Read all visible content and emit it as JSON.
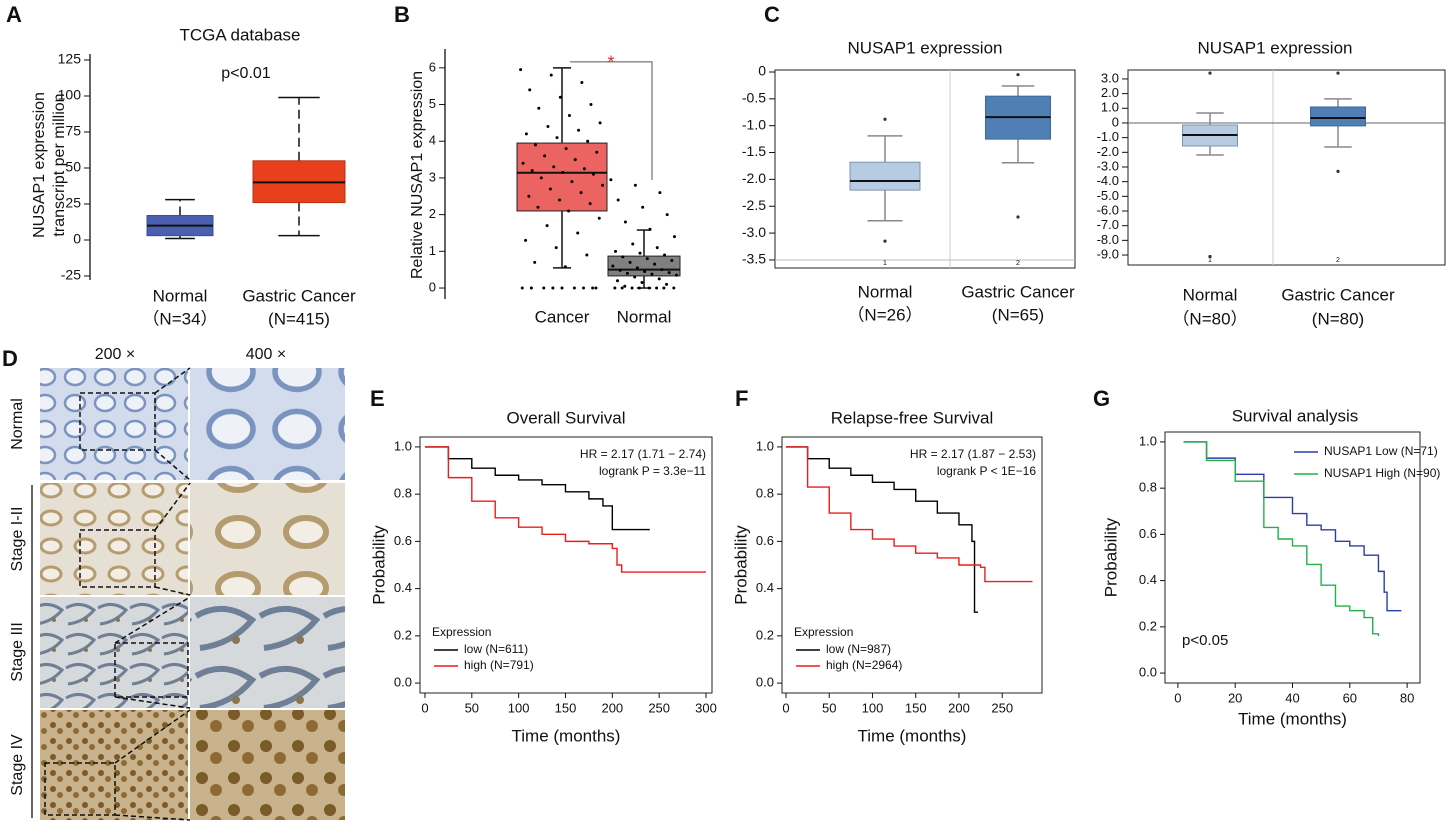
{
  "panel_labels": [
    "A",
    "B",
    "C",
    "D",
    "E",
    "F",
    "G"
  ],
  "histology": {
    "magnifications": [
      "200 ×",
      "400 ×"
    ],
    "rows": [
      "Normal",
      "Stage I-II",
      "Stage III",
      "Stage IV"
    ]
  },
  "chart_data": [
    {
      "type": "box",
      "title": "TCGA database",
      "annotation": "p<0.01",
      "ylabel": [
        "NUSAP1 expression",
        "transcript per million"
      ],
      "categories": [
        "Normal",
        "Gastric Cancer"
      ],
      "category_counts": [
        "（N=34）",
        "(N=415)"
      ],
      "colors": [
        "#4a5fb0",
        "#e8401c"
      ],
      "ylim": [
        -25,
        125
      ],
      "yticks": [
        -25,
        0,
        25,
        50,
        75,
        100,
        125
      ],
      "boxes": [
        {
          "low": 1,
          "q1": 3,
          "median": 10,
          "q3": 17,
          "high": 28
        },
        {
          "low": 3,
          "q1": 26,
          "median": 40,
          "q3": 55,
          "high": 99
        }
      ]
    },
    {
      "type": "box",
      "ylabel": [
        "Relative NUSAP1 expression"
      ],
      "annotation": "*",
      "categories": [
        "Cancer",
        "Normal"
      ],
      "colors": [
        "#ec6462",
        "#808080"
      ],
      "ylim": [
        -0.19,
        6.35
      ],
      "yticks": [
        0,
        1,
        2,
        3,
        4,
        5,
        6
      ],
      "boxes": [
        {
          "low": 0.55,
          "q1": 2.1,
          "median": 3.14,
          "q3": 3.95,
          "high": 6,
          "points": [
            5.95,
            5.8,
            5.6,
            5.4,
            5.2,
            5.0,
            4.9,
            4.7,
            4.5,
            4.4,
            4.3,
            4.2,
            4.1,
            4.0,
            3.9,
            3.8,
            3.7,
            3.6,
            3.5,
            3.4,
            3.3,
            3.25,
            3.2,
            3.15,
            3.1,
            3.0,
            2.9,
            2.8,
            2.7,
            2.6,
            2.5,
            2.4,
            2.3,
            2.2,
            2.1,
            1.9,
            1.7,
            1.5,
            1.3,
            1.1,
            0.9,
            0.7,
            0.58,
            0,
            0,
            0,
            0,
            0,
            0,
            0,
            0,
            0
          ]
        },
        {
          "low": 0,
          "q1": 0.33,
          "median": 0.5,
          "q3": 0.87,
          "high": 1.58,
          "points": [
            2.95,
            2.8,
            2.6,
            2.4,
            2.2,
            2.0,
            1.8,
            1.6,
            1.4,
            1.2,
            1.1,
            1.0,
            0.95,
            0.9,
            0.85,
            0.8,
            0.75,
            0.7,
            0.65,
            0.6,
            0.55,
            0.5,
            0.48,
            0.45,
            0.42,
            0.4,
            0.38,
            0.35,
            0.3,
            0.25,
            0.2,
            0.15,
            0.1,
            0.05,
            0,
            0,
            0,
            0,
            0,
            0,
            0,
            0
          ]
        }
      ]
    },
    {
      "type": "box",
      "title": "NUSAP1 expression",
      "categories": [
        "Normal",
        "Gastric Cancer"
      ],
      "category_counts": [
        "（N=26）",
        "(N=65)"
      ],
      "group_ids": [
        "1",
        "2"
      ],
      "colors": [
        "#b7cbe2",
        "#4f7fb4"
      ],
      "reference_line": -3.5,
      "ylim": [
        -3.65,
        0.037
      ],
      "yticks": [
        0,
        -0.5,
        {
          "value": -1,
          "label": "-1.0"
        },
        -1.5,
        {
          "value": -2,
          "label": "-2.0"
        },
        -2.5,
        {
          "value": -3,
          "label": "-3.0"
        },
        -3.5
      ],
      "boxes": [
        {
          "low": -2.77,
          "q1": -2.2,
          "median": -2.03,
          "q3": -1.68,
          "high": -1.19,
          "outliers": [
            -0.88,
            -3.15
          ]
        },
        {
          "low": -1.69,
          "q1": -1.25,
          "median": -0.84,
          "q3": -0.45,
          "high": -0.26,
          "outliers": [
            -0.05,
            -2.7
          ]
        }
      ]
    },
    {
      "type": "box",
      "title": "NUSAP1 expression",
      "categories": [
        "Normal",
        "Gastric Cancer"
      ],
      "category_counts": [
        "（N=80）",
        "(N=80)"
      ],
      "group_ids": [
        "1",
        "2"
      ],
      "colors": [
        "#b7cbe2",
        "#4f7fb4"
      ],
      "reference_line": 0,
      "ylim": [
        -9.68,
        3.61
      ],
      "yticks": [
        {
          "value": 3,
          "label": "3.0"
        },
        {
          "value": 2,
          "label": "2.0"
        },
        {
          "value": 1,
          "label": "1.0"
        },
        0,
        {
          "value": -1,
          "label": "-1.0"
        },
        {
          "value": -2,
          "label": "-2.0"
        },
        {
          "value": -3,
          "label": "-3.0"
        },
        {
          "value": -4,
          "label": "-4.0"
        },
        {
          "value": -5,
          "label": "-5.0"
        },
        {
          "value": -6,
          "label": "-6.0"
        },
        {
          "value": -7,
          "label": "-7.0"
        },
        {
          "value": -8,
          "label": "-8.0"
        },
        {
          "value": -9,
          "label": "-9.0"
        }
      ],
      "boxes": [
        {
          "low": -2.18,
          "q1": -1.57,
          "median": -0.82,
          "q3": -0.14,
          "high": 0.68,
          "outliers": [
            3.4,
            -9.1
          ]
        },
        {
          "low": -1.64,
          "q1": -0.2,
          "median": 0.34,
          "q3": 1.09,
          "high": 1.64,
          "outliers": [
            3.4,
            -3.3
          ]
        }
      ]
    },
    {
      "type": "survival",
      "title": "Overall Survival",
      "xlabel": "Time (months)",
      "ylabel": "Probability",
      "annotations": [
        "HR = 2.17 (1.71 − 2.74)",
        "logrank P = 3.3e−11"
      ],
      "legend_title": "Expression",
      "legend": "lower left",
      "xlim": [
        -5.3,
        306.4
      ],
      "xticks": [
        0,
        50,
        100,
        150,
        200,
        250,
        300
      ],
      "ylim": [
        -0.042,
        1.042
      ],
      "yticks": [
        {
          "value": 0,
          "label": "0.0"
        },
        0.2,
        0.4,
        0.6,
        0.8,
        {
          "value": 1,
          "label": "1.0"
        }
      ],
      "series": [
        {
          "name": "low (N=611)",
          "color": "#000000",
          "x": [
            0,
            25,
            50,
            75,
            100,
            125,
            150,
            175,
            190,
            200,
            240
          ],
          "values": [
            1,
            0.95,
            0.91,
            0.88,
            0.86,
            0.84,
            0.81,
            0.78,
            0.75,
            0.65,
            0.65
          ]
        },
        {
          "name": "high (N=791)",
          "color": "#ee1c1c",
          "x": [
            0,
            25,
            50,
            75,
            100,
            125,
            150,
            175,
            200,
            205,
            210,
            300
          ],
          "values": [
            1,
            0.87,
            0.77,
            0.7,
            0.66,
            0.63,
            0.6,
            0.59,
            0.57,
            0.5,
            0.47,
            0.47
          ]
        }
      ]
    },
    {
      "type": "survival",
      "title": "Relapse-free Survival",
      "xlabel": "Time (months)",
      "ylabel": "Probability",
      "annotations": [
        "HR = 2.17 (1.87 − 2.53)",
        "logrank P < 1E−16"
      ],
      "legend_title": "Expression",
      "legend": "lower left",
      "xlim": [
        -4.6,
        296
      ],
      "xticks": [
        0,
        50,
        100,
        150,
        200,
        250
      ],
      "ylim": [
        -0.042,
        1.042
      ],
      "yticks": [
        {
          "value": 0,
          "label": "0.0"
        },
        0.2,
        0.4,
        0.6,
        0.8,
        {
          "value": 1,
          "label": "1.0"
        }
      ],
      "series": [
        {
          "name": "low (N=987)",
          "color": "#000000",
          "x": [
            0,
            25,
            50,
            75,
            100,
            125,
            150,
            175,
            200,
            215,
            218,
            222
          ],
          "values": [
            1,
            0.95,
            0.91,
            0.88,
            0.85,
            0.82,
            0.77,
            0.72,
            0.67,
            0.6,
            0.3,
            0.3
          ]
        },
        {
          "name": "high (N=2964)",
          "color": "#ee1c1c",
          "x": [
            0,
            25,
            50,
            75,
            100,
            125,
            150,
            175,
            200,
            225,
            230,
            285
          ],
          "values": [
            1,
            0.83,
            0.72,
            0.65,
            0.61,
            0.58,
            0.55,
            0.53,
            0.5,
            0.49,
            0.43,
            0.43
          ]
        }
      ]
    },
    {
      "type": "survival",
      "title": "Survival analysis",
      "xlabel": "Time (months)",
      "ylabel": "Probability",
      "annotations": [
        "p<0.05"
      ],
      "legend": "upper right",
      "xlim": [
        -4.5,
        84.5
      ],
      "xticks": [
        0,
        20,
        40,
        60,
        80
      ],
      "ylim": [
        -0.043,
        1.043
      ],
      "yticks": [
        {
          "value": 0,
          "label": "0.0"
        },
        0.2,
        0.4,
        0.6,
        0.8,
        {
          "value": 1,
          "label": "1.0"
        }
      ],
      "series": [
        {
          "name": "NUSAP1 Low (N=71)",
          "color": "#2b3ea8",
          "x": [
            2,
            10,
            20,
            30,
            40,
            45,
            50,
            55,
            60,
            65,
            70,
            72,
            73,
            78
          ],
          "values": [
            1,
            0.93,
            0.86,
            0.76,
            0.69,
            0.64,
            0.62,
            0.57,
            0.55,
            0.51,
            0.44,
            0.35,
            0.27,
            0.27
          ]
        },
        {
          "name": "NUSAP1 High (N=90)",
          "color": "#22b04b",
          "x": [
            2,
            10,
            20,
            30,
            35,
            40,
            45,
            50,
            55,
            60,
            65,
            68,
            70
          ],
          "values": [
            1,
            0.92,
            0.83,
            0.63,
            0.58,
            0.55,
            0.47,
            0.38,
            0.29,
            0.27,
            0.24,
            0.17,
            0.16
          ]
        }
      ]
    }
  ]
}
